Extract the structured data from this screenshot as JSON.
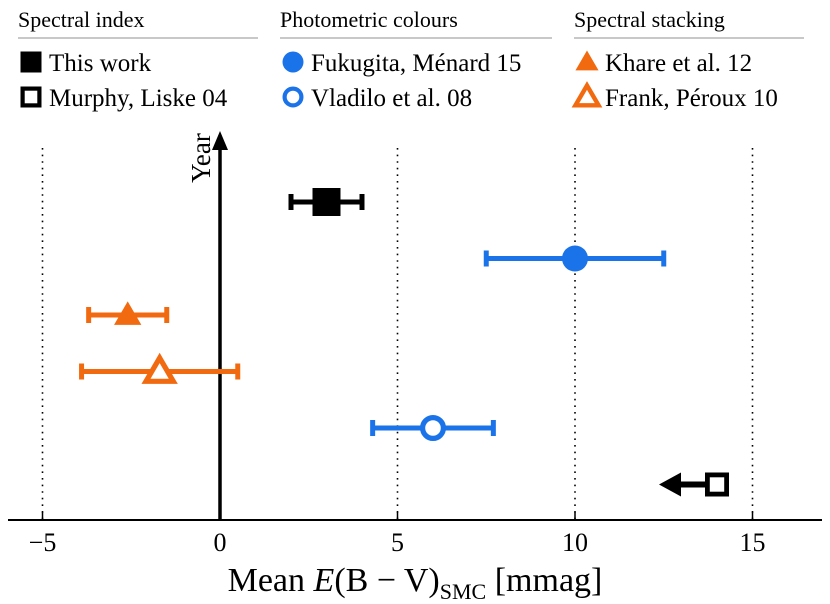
{
  "chart_data": {
    "type": "scatter",
    "title": "",
    "xlabel_parts": [
      "Mean ",
      "E",
      "(B − V)",
      "SMC",
      " [mmag]"
    ],
    "ylabel": "Year",
    "xlim": [
      -6,
      17
    ],
    "xticks": [
      -5,
      0,
      5,
      10,
      15
    ],
    "xtick_labels": [
      "−5",
      "0",
      "5",
      "10",
      "15"
    ],
    "gridlines": [
      -5,
      5,
      10,
      15
    ],
    "colors": {
      "black": "#000000",
      "blue": "#1a73e8",
      "orange": "#f26a10"
    },
    "legend_groups": [
      {
        "heading": "Spectral index",
        "entries": [
          {
            "label": "This work",
            "marker": "square",
            "filled": true,
            "color": "#000000"
          },
          {
            "label": "Murphy, Liske 04",
            "marker": "square",
            "filled": false,
            "color": "#000000"
          }
        ]
      },
      {
        "heading": "Photometric colours",
        "entries": [
          {
            "label": "Fukugita, Ménard 15",
            "marker": "circle",
            "filled": true,
            "color": "#1a73e8"
          },
          {
            "label": "Vladilo et al. 08",
            "marker": "circle",
            "filled": false,
            "color": "#1a73e8"
          }
        ]
      },
      {
        "heading": "Spectral stacking",
        "entries": [
          {
            "label": "Khare et al. 12",
            "marker": "triangle",
            "filled": true,
            "color": "#f26a10"
          },
          {
            "label": "Frank, Péroux 10",
            "marker": "triangle",
            "filled": false,
            "color": "#f26a10"
          }
        ]
      }
    ],
    "series": [
      {
        "name": "This work",
        "x": 3.0,
        "xerr_low": 1.0,
        "xerr_high": 1.0,
        "rank": 1,
        "marker": "square",
        "filled": true,
        "color": "#000000"
      },
      {
        "name": "Fukugita, Ménard 15",
        "x": 10.0,
        "xerr_low": 2.5,
        "xerr_high": 2.5,
        "rank": 2,
        "marker": "circle",
        "filled": true,
        "color": "#1a73e8"
      },
      {
        "name": "Khare et al. 12",
        "x": -2.6,
        "xerr_low": 1.1,
        "xerr_high": 1.1,
        "rank": 3,
        "marker": "triangle",
        "filled": true,
        "color": "#f26a10"
      },
      {
        "name": "Frank, Péroux 10",
        "x": -1.7,
        "xerr_low": 2.2,
        "xerr_high": 2.2,
        "rank": 4,
        "marker": "triangle",
        "filled": false,
        "color": "#f26a10"
      },
      {
        "name": "Vladilo et al. 08",
        "x": 6.0,
        "xerr_low": 1.7,
        "xerr_high": 1.7,
        "rank": 5,
        "marker": "circle",
        "filled": false,
        "color": "#1a73e8"
      },
      {
        "name": "Murphy, Liske 04",
        "x": 14.0,
        "upper_limit": true,
        "rank": 6,
        "marker": "square",
        "filled": false,
        "color": "#000000"
      }
    ]
  }
}
